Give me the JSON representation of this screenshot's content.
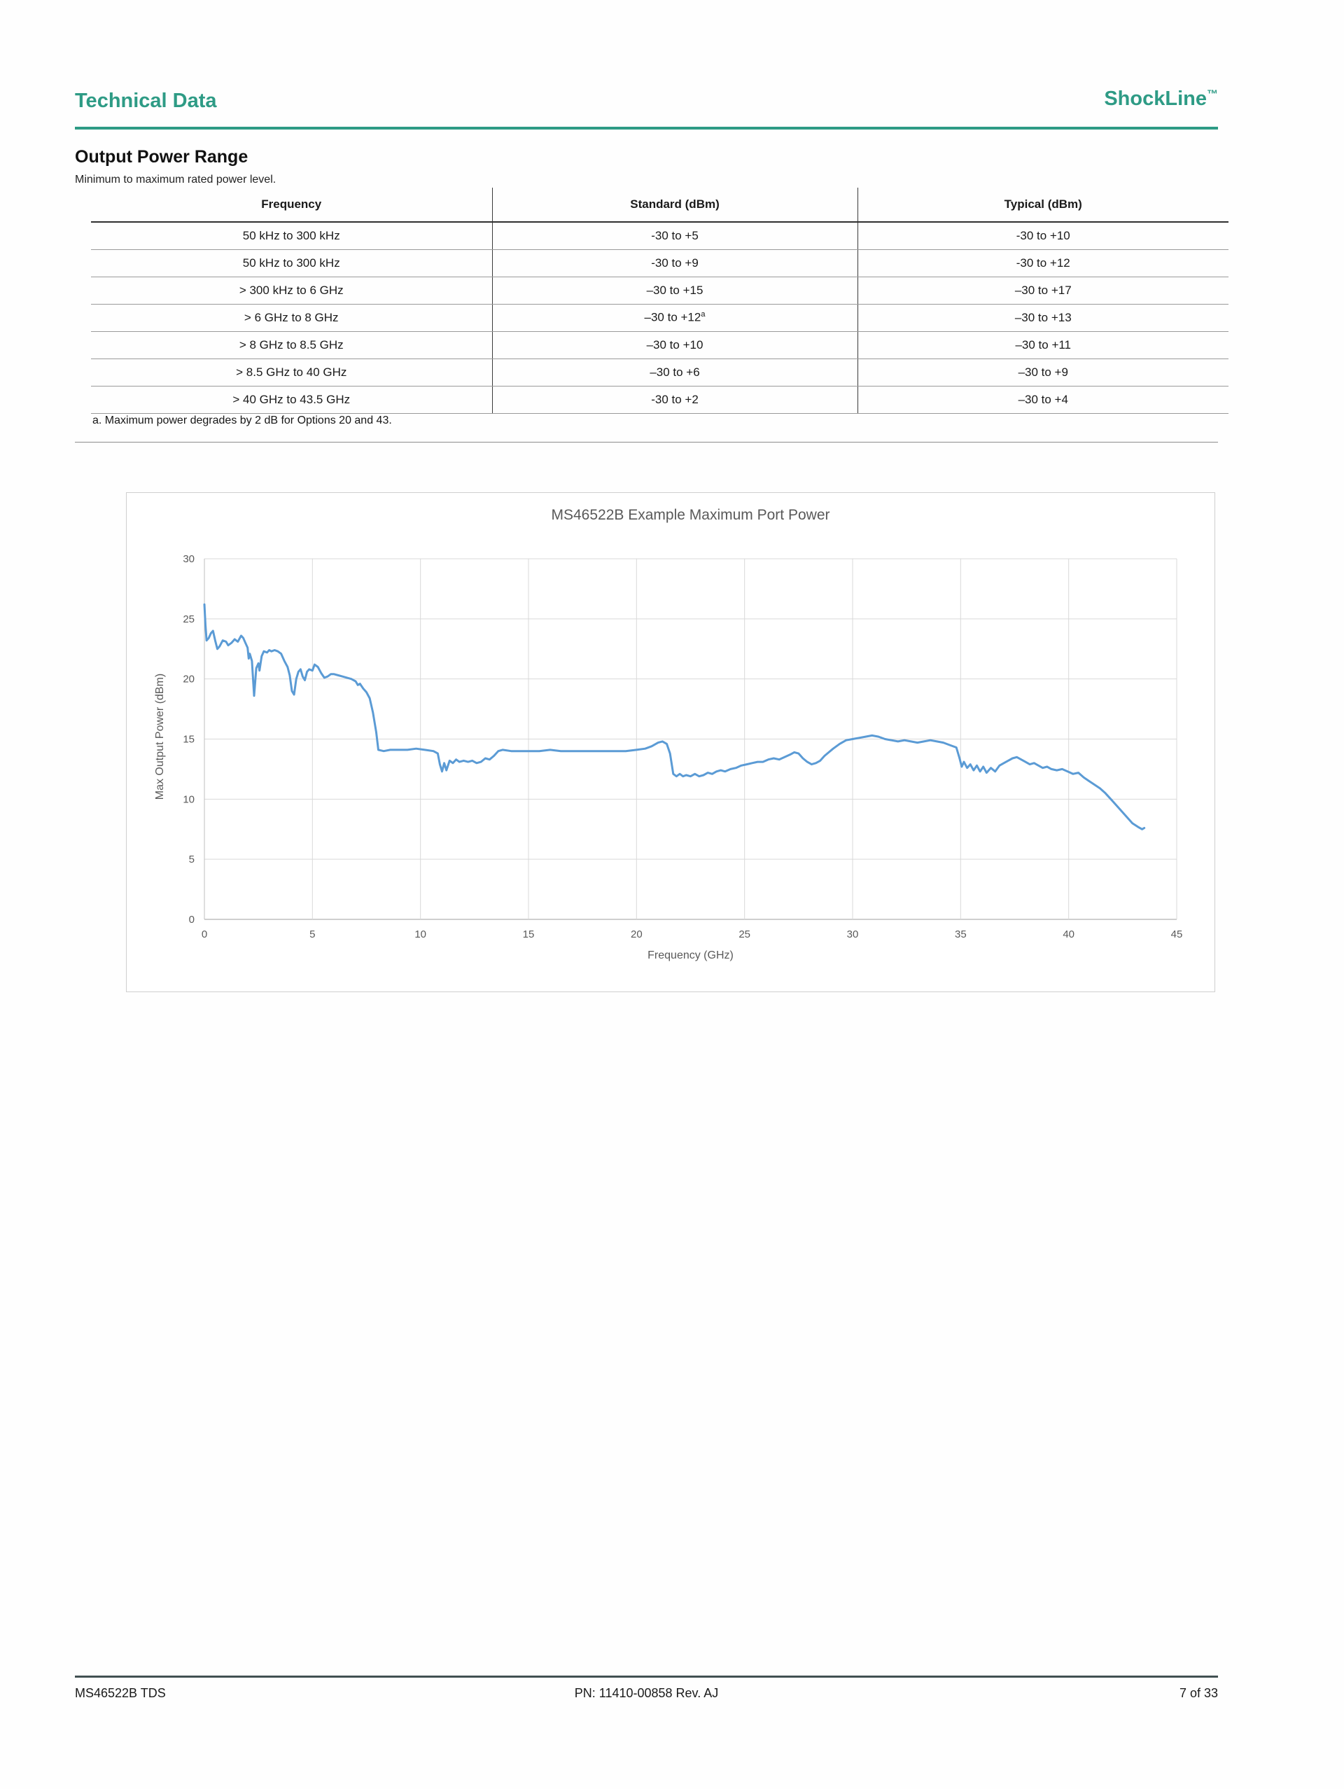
{
  "header": {
    "left_title": "Technical Data",
    "brand": "ShockLine",
    "brand_tm": "™"
  },
  "section": {
    "title": "Output Power Range",
    "subtitle": "Minimum to maximum rated power level."
  },
  "table": {
    "headers": [
      "Frequency",
      "Standard (dBm)",
      "Typical (dBm)"
    ],
    "rows": [
      {
        "freq": "50 kHz to 300 kHz",
        "std": "-30 to +5",
        "typ": "-30 to +10"
      },
      {
        "freq": "50 kHz to 300 kHz",
        "std": "-30 to +9",
        "typ": "-30 to +12"
      },
      {
        "freq": "> 300 kHz to 6 GHz",
        "std": "–30 to +15",
        "typ": "–30 to +17"
      },
      {
        "freq": "> 6 GHz to 8 GHz",
        "std": "–30 to +12",
        "std_sup": "a",
        "typ": "–30 to +13"
      },
      {
        "freq": "> 8 GHz to 8.5 GHz",
        "std": "–30 to +10",
        "typ": "–30 to +11"
      },
      {
        "freq": "> 8.5 GHz to 40 GHz",
        "std": "–30 to +6",
        "typ": "–30 to +9"
      },
      {
        "freq": "> 40 GHz to 43.5 GHz",
        "std": "-30 to +2",
        "typ": "–30 to +4"
      }
    ],
    "footnote": "a.  Maximum power degrades by 2 dB for Options 20 and 43."
  },
  "chart_data": {
    "type": "line",
    "title": "MS46522B Example Maximum Port Power",
    "xlabel": "Frequency (GHz)",
    "ylabel": "Max Output Power (dBm)",
    "xlim": [
      0,
      45
    ],
    "ylim": [
      0,
      30
    ],
    "x_ticks": [
      0,
      5,
      10,
      15,
      20,
      25,
      30,
      35,
      40,
      45
    ],
    "y_ticks": [
      0,
      5,
      10,
      15,
      20,
      25,
      30
    ],
    "grid": true,
    "legend": "none",
    "series": [
      {
        "name": "Max Output Power",
        "color": "#5b9bd5",
        "points": [
          [
            0,
            26.2
          ],
          [
            0.05,
            24.5
          ],
          [
            0.1,
            23.2
          ],
          [
            0.2,
            23.4
          ],
          [
            0.3,
            23.8
          ],
          [
            0.4,
            24
          ],
          [
            0.5,
            23.2
          ],
          [
            0.6,
            22.5
          ],
          [
            0.7,
            22.7
          ],
          [
            0.85,
            23.2
          ],
          [
            1,
            23.1
          ],
          [
            1.1,
            22.8
          ],
          [
            1.25,
            23
          ],
          [
            1.4,
            23.3
          ],
          [
            1.55,
            23.1
          ],
          [
            1.7,
            23.6
          ],
          [
            1.8,
            23.4
          ],
          [
            1.9,
            23
          ],
          [
            2,
            22.6
          ],
          [
            2.05,
            21.7
          ],
          [
            2.1,
            22.1
          ],
          [
            2.2,
            21.5
          ],
          [
            2.3,
            18.6
          ],
          [
            2.4,
            20.9
          ],
          [
            2.5,
            21.3
          ],
          [
            2.55,
            20.7
          ],
          [
            2.65,
            21.9
          ],
          [
            2.75,
            22.3
          ],
          [
            2.9,
            22.2
          ],
          [
            3,
            22.4
          ],
          [
            3.1,
            22.3
          ],
          [
            3.25,
            22.4
          ],
          [
            3.4,
            22.3
          ],
          [
            3.55,
            22.1
          ],
          [
            3.7,
            21.5
          ],
          [
            3.85,
            21
          ],
          [
            3.95,
            20.3
          ],
          [
            4.05,
            19
          ],
          [
            4.15,
            18.7
          ],
          [
            4.25,
            20
          ],
          [
            4.35,
            20.6
          ],
          [
            4.45,
            20.8
          ],
          [
            4.55,
            20.2
          ],
          [
            4.65,
            19.9
          ],
          [
            4.75,
            20.6
          ],
          [
            4.85,
            20.8
          ],
          [
            5,
            20.7
          ],
          [
            5.1,
            21.2
          ],
          [
            5.25,
            21
          ],
          [
            5.4,
            20.5
          ],
          [
            5.55,
            20.1
          ],
          [
            5.7,
            20.2
          ],
          [
            5.85,
            20.4
          ],
          [
            6,
            20.4
          ],
          [
            6.2,
            20.3
          ],
          [
            6.4,
            20.2
          ],
          [
            6.6,
            20.1
          ],
          [
            6.8,
            20
          ],
          [
            7,
            19.8
          ],
          [
            7.1,
            19.5
          ],
          [
            7.2,
            19.6
          ],
          [
            7.35,
            19.2
          ],
          [
            7.5,
            18.9
          ],
          [
            7.65,
            18.4
          ],
          [
            7.8,
            17.2
          ],
          [
            7.95,
            15.6
          ],
          [
            8.05,
            14.1
          ],
          [
            8.3,
            14
          ],
          [
            8.6,
            14.1
          ],
          [
            9,
            14.1
          ],
          [
            9.4,
            14.1
          ],
          [
            9.8,
            14.2
          ],
          [
            10.2,
            14.1
          ],
          [
            10.6,
            14
          ],
          [
            10.8,
            13.8
          ],
          [
            10.9,
            12.9
          ],
          [
            11,
            12.3
          ],
          [
            11.1,
            13
          ],
          [
            11.2,
            12.4
          ],
          [
            11.35,
            13.2
          ],
          [
            11.5,
            13
          ],
          [
            11.65,
            13.3
          ],
          [
            11.8,
            13.1
          ],
          [
            12,
            13.2
          ],
          [
            12.2,
            13.1
          ],
          [
            12.4,
            13.2
          ],
          [
            12.6,
            13
          ],
          [
            12.8,
            13.1
          ],
          [
            13,
            13.4
          ],
          [
            13.2,
            13.3
          ],
          [
            13.4,
            13.6
          ],
          [
            13.6,
            14
          ],
          [
            13.8,
            14.1
          ],
          [
            14.2,
            14
          ],
          [
            14.6,
            14
          ],
          [
            15,
            14
          ],
          [
            15.5,
            14
          ],
          [
            16,
            14.1
          ],
          [
            16.5,
            14
          ],
          [
            17,
            14
          ],
          [
            17.5,
            14
          ],
          [
            18,
            14
          ],
          [
            18.5,
            14
          ],
          [
            19,
            14
          ],
          [
            19.5,
            14
          ],
          [
            20,
            14.1
          ],
          [
            20.4,
            14.2
          ],
          [
            20.7,
            14.4
          ],
          [
            21,
            14.7
          ],
          [
            21.2,
            14.8
          ],
          [
            21.4,
            14.6
          ],
          [
            21.55,
            13.8
          ],
          [
            21.7,
            12.1
          ],
          [
            21.85,
            11.9
          ],
          [
            22,
            12.1
          ],
          [
            22.15,
            11.9
          ],
          [
            22.3,
            12
          ],
          [
            22.5,
            11.9
          ],
          [
            22.7,
            12.1
          ],
          [
            22.9,
            11.9
          ],
          [
            23.1,
            12
          ],
          [
            23.3,
            12.2
          ],
          [
            23.5,
            12.1
          ],
          [
            23.7,
            12.3
          ],
          [
            23.9,
            12.4
          ],
          [
            24.1,
            12.3
          ],
          [
            24.35,
            12.5
          ],
          [
            24.6,
            12.6
          ],
          [
            24.85,
            12.8
          ],
          [
            25.1,
            12.9
          ],
          [
            25.35,
            13
          ],
          [
            25.6,
            13.1
          ],
          [
            25.85,
            13.1
          ],
          [
            26.1,
            13.3
          ],
          [
            26.35,
            13.4
          ],
          [
            26.6,
            13.3
          ],
          [
            26.85,
            13.5
          ],
          [
            27.1,
            13.7
          ],
          [
            27.3,
            13.9
          ],
          [
            27.5,
            13.8
          ],
          [
            27.7,
            13.4
          ],
          [
            27.9,
            13.1
          ],
          [
            28.1,
            12.9
          ],
          [
            28.3,
            13
          ],
          [
            28.5,
            13.2
          ],
          [
            28.7,
            13.6
          ],
          [
            28.9,
            13.9
          ],
          [
            29.1,
            14.2
          ],
          [
            29.4,
            14.6
          ],
          [
            29.7,
            14.9
          ],
          [
            30,
            15
          ],
          [
            30.3,
            15.1
          ],
          [
            30.6,
            15.2
          ],
          [
            30.9,
            15.3
          ],
          [
            31.2,
            15.2
          ],
          [
            31.5,
            15
          ],
          [
            31.8,
            14.9
          ],
          [
            32.1,
            14.8
          ],
          [
            32.4,
            14.9
          ],
          [
            32.7,
            14.8
          ],
          [
            33,
            14.7
          ],
          [
            33.3,
            14.8
          ],
          [
            33.6,
            14.9
          ],
          [
            33.9,
            14.8
          ],
          [
            34.2,
            14.7
          ],
          [
            34.5,
            14.5
          ],
          [
            34.8,
            14.3
          ],
          [
            34.95,
            13.4
          ],
          [
            35.05,
            12.7
          ],
          [
            35.15,
            13.1
          ],
          [
            35.3,
            12.6
          ],
          [
            35.45,
            12.9
          ],
          [
            35.6,
            12.4
          ],
          [
            35.75,
            12.8
          ],
          [
            35.9,
            12.3
          ],
          [
            36.05,
            12.7
          ],
          [
            36.2,
            12.2
          ],
          [
            36.4,
            12.6
          ],
          [
            36.6,
            12.3
          ],
          [
            36.8,
            12.8
          ],
          [
            37,
            13
          ],
          [
            37.2,
            13.2
          ],
          [
            37.4,
            13.4
          ],
          [
            37.6,
            13.5
          ],
          [
            37.8,
            13.3
          ],
          [
            38,
            13.1
          ],
          [
            38.2,
            12.9
          ],
          [
            38.4,
            13
          ],
          [
            38.6,
            12.8
          ],
          [
            38.8,
            12.6
          ],
          [
            39,
            12.7
          ],
          [
            39.2,
            12.5
          ],
          [
            39.45,
            12.4
          ],
          [
            39.7,
            12.5
          ],
          [
            39.95,
            12.3
          ],
          [
            40.2,
            12.1
          ],
          [
            40.45,
            12.2
          ],
          [
            40.7,
            11.8
          ],
          [
            40.95,
            11.5
          ],
          [
            41.2,
            11.2
          ],
          [
            41.45,
            10.9
          ],
          [
            41.7,
            10.5
          ],
          [
            41.95,
            10
          ],
          [
            42.2,
            9.5
          ],
          [
            42.45,
            9
          ],
          [
            42.7,
            8.5
          ],
          [
            42.95,
            8
          ],
          [
            43.2,
            7.7
          ],
          [
            43.4,
            7.5
          ],
          [
            43.5,
            7.6
          ]
        ]
      }
    ]
  },
  "footer": {
    "left": "MS46522B TDS",
    "center": "PN: 11410-00858 Rev. AJ",
    "right": "7 of 33"
  },
  "colors": {
    "accent": "#2e9b85",
    "footer_rule": "#415052",
    "chart_line": "#5b9bd5",
    "grid": "#d9d9d9",
    "axis": "#bfbfbf",
    "chart_text": "#595959"
  }
}
